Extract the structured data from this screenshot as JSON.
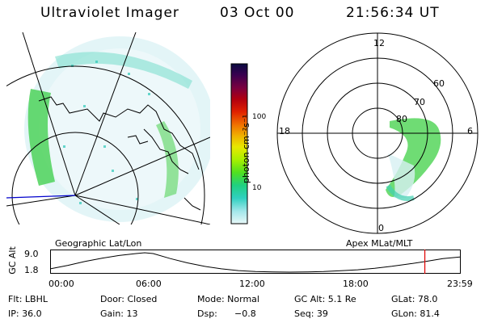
{
  "header": {
    "instrument": "Ultraviolet Imager",
    "date": "03 Oct 00",
    "time": "21:56:34 UT"
  },
  "left_panel": {
    "caption": "Geographic Lat/Lon"
  },
  "right_panel": {
    "caption": "Apex MLat/MLT",
    "mlt_labels": {
      "top": "12",
      "left": "18",
      "right": "6",
      "bottom": "0"
    },
    "lat_labels": [
      "60",
      "70",
      "80"
    ]
  },
  "colorbar": {
    "unit_label": "photon cm⁻²s⁻¹",
    "ticks": [
      "100",
      "10"
    ],
    "colors": [
      "#0a0a40",
      "#3a0050",
      "#6a0050",
      "#a00020",
      "#d00000",
      "#f06000",
      "#f0a000",
      "#f0e000",
      "#b0f000",
      "#50e020",
      "#20d080",
      "#30d0c0",
      "#80e0e0",
      "#c0eef0",
      "#e8f8f8"
    ]
  },
  "altitude_plot": {
    "ylabel": "GC Alt",
    "yticks": [
      "9.0",
      "1.8"
    ],
    "xticks": [
      "00:00",
      "06:00",
      "12:00",
      "18:00",
      "23:59"
    ],
    "profile_points": [
      [
        0,
        0.18
      ],
      [
        1,
        0.35
      ],
      [
        2,
        0.55
      ],
      [
        3,
        0.72
      ],
      [
        4,
        0.86
      ],
      [
        5,
        0.96
      ],
      [
        5.5,
        1.0
      ],
      [
        6,
        0.96
      ],
      [
        7,
        0.7
      ],
      [
        8,
        0.48
      ],
      [
        9,
        0.3
      ],
      [
        10,
        0.17
      ],
      [
        11,
        0.08
      ],
      [
        12,
        0.03
      ],
      [
        13,
        0.01
      ],
      [
        14,
        0.0
      ],
      [
        15,
        0.01
      ],
      [
        16,
        0.03
      ],
      [
        17,
        0.07
      ],
      [
        18,
        0.12
      ],
      [
        19,
        0.2
      ],
      [
        20,
        0.3
      ],
      [
        21,
        0.42
      ],
      [
        22,
        0.55
      ],
      [
        23,
        0.7
      ],
      [
        24,
        0.78
      ]
    ],
    "current_time_marker": 21.94
  },
  "footer": {
    "filter": "Flt: LBHL",
    "ip": "IP: 36.0",
    "door": "Door: Closed",
    "gain": "Gain: 13",
    "mode": "Mode: Normal",
    "dsp_label": "Dsp:",
    "dsp_value": "−0.8",
    "gc_alt": "GC Alt: 5.1 Re",
    "seq": "Seq: 39",
    "glat": "GLat: 78.0",
    "glon": "GLon: 81.4"
  },
  "colors": {
    "accent_marker": "#e00000",
    "geo_line_blue": "#0000cc"
  }
}
